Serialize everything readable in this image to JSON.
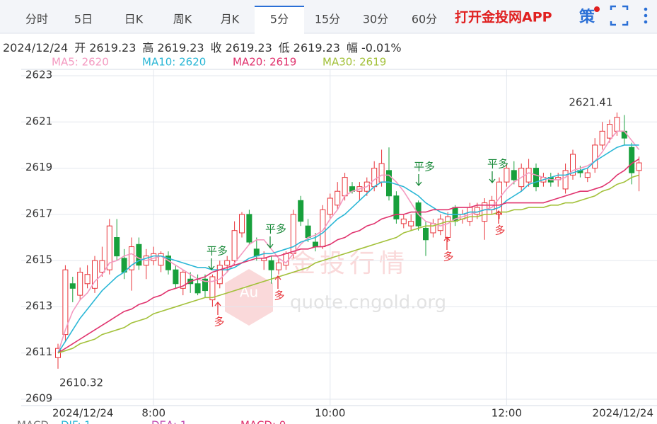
{
  "tabs": [
    "分时",
    "5日",
    "日K",
    "周K",
    "月K",
    "5分",
    "15分",
    "30分",
    "60分"
  ],
  "selected_tab": 5,
  "app_link": "打开金投网APP",
  "strategy_icon": "策",
  "info": {
    "date": "2024/12/24",
    "items": [
      {
        "label": "开",
        "value": "2619.23"
      },
      {
        "label": "高",
        "value": "2619.23"
      },
      {
        "label": "收",
        "value": "2619.23"
      },
      {
        "label": "低",
        "value": "2619.23"
      },
      {
        "label": "幅",
        "value": "-0.01%"
      }
    ]
  },
  "watermark": {
    "brand": "金投行情",
    "url": "quote.cngold.org",
    "logo": "Au"
  },
  "footer": [
    "MACD",
    "DIF: 1",
    "DEA: 1",
    "MACD: 0"
  ],
  "signals": [
    "平多",
    "多",
    "平多",
    "多",
    "平多",
    "多",
    "平多",
    "多"
  ],
  "chart_data": {
    "type": "candlestick",
    "up_color": "#e8343a",
    "down_color": "#18a03c",
    "categories": [
      "2024/12/24",
      null,
      null,
      null,
      null,
      null,
      null,
      null,
      null,
      null,
      null,
      null,
      null,
      "8:00",
      null,
      null,
      null,
      null,
      null,
      null,
      null,
      null,
      null,
      null,
      null,
      null,
      null,
      null,
      null,
      null,
      null,
      null,
      null,
      null,
      null,
      null,
      null,
      "10:00",
      null,
      null,
      null,
      null,
      null,
      null,
      null,
      null,
      null,
      null,
      null,
      null,
      null,
      null,
      null,
      null,
      null,
      null,
      null,
      null,
      null,
      null,
      null,
      "12:00",
      null,
      null,
      null,
      null,
      null,
      null,
      null,
      null,
      null,
      null,
      null,
      null,
      null,
      null,
      null,
      null,
      null,
      "2024/12/24"
    ],
    "open": [
      2610.8,
      2611.8,
      2614.0,
      2613.5,
      2614.0,
      2613.8,
      2614.5,
      2614.6,
      2616.0,
      2615.1,
      2614.6,
      2615.7,
      2614.8,
      2615.0,
      2614.8,
      2615.2,
      2614.6,
      2613.8,
      2614.2,
      2614.0,
      2614.2,
      2613.3,
      2614.0,
      2614.8,
      2615.0,
      2616.2,
      2617.0,
      2615.5,
      2615.0,
      2615.0,
      2614.6,
      2614.8,
      2615.3,
      2617.6,
      2616.5,
      2615.8,
      2615.6,
      2617.0,
      2617.4,
      2617.8,
      2618.2,
      2618.0,
      2618.0,
      2618.2,
      2618.4,
      2618.9,
      2617.8,
      2616.6,
      2616.5,
      2617.5,
      2616.4,
      2616.2,
      2616.3,
      2616.0,
      2617.3,
      2616.8,
      2616.7,
      2617.0,
      2616.7,
      2617.2,
      2617.0,
      2618.4,
      2618.9,
      2618.2,
      2618.4,
      2619.0,
      2618.4,
      2618.6,
      2618.5,
      2618.1,
      2618.7,
      2618.9,
      2618.6,
      2619.0,
      2620.0,
      2620.3,
      2620.6,
      2620.6,
      2619.9,
      2618.9
    ],
    "high": [
      2611.4,
      2614.8,
      2614.3,
      2614.7,
      2614.8,
      2615.2,
      2615.6,
      2616.8,
      2616.8,
      2615.5,
      2616.0,
      2616.0,
      2615.5,
      2615.6,
      2615.4,
      2615.4,
      2614.8,
      2614.6,
      2614.5,
      2614.4,
      2614.4,
      2614.4,
      2615.0,
      2615.2,
      2616.7,
      2617.1,
      2617.2,
      2616.0,
      2615.4,
      2615.2,
      2615.1,
      2615.4,
      2617.2,
      2617.8,
      2616.8,
      2616.2,
      2617.4,
      2617.9,
      2618.4,
      2618.8,
      2618.4,
      2618.4,
      2618.6,
      2619.3,
      2619.8,
      2619.9,
      2618.0,
      2617.0,
      2617.0,
      2617.6,
      2616.7,
      2616.8,
      2617.0,
      2617.1,
      2617.4,
      2617.2,
      2617.5,
      2617.5,
      2617.7,
      2617.8,
      2618.6,
      2619.2,
      2619.3,
      2619.2,
      2619.4,
      2619.2,
      2618.8,
      2618.8,
      2618.8,
      2619.2,
      2619.8,
      2619.1,
      2619.0,
      2620.3,
      2621.0,
      2621.1,
      2621.41,
      2621.3,
      2620.1,
      2619.5
    ],
    "low": [
      2610.32,
      2611.5,
      2613.2,
      2613.3,
      2613.8,
      2613.6,
      2614.3,
      2614.4,
      2615.0,
      2614.2,
      2613.7,
      2614.6,
      2614.2,
      2614.8,
      2614.5,
      2614.4,
      2613.8,
      2613.5,
      2613.6,
      2613.5,
      2613.4,
      2613.0,
      2613.8,
      2614.5,
      2614.8,
      2616.0,
      2615.7,
      2615.0,
      2614.6,
      2614.0,
      2614.4,
      2614.6,
      2615.1,
      2616.5,
      2615.8,
      2615.4,
      2615.5,
      2616.8,
      2617.2,
      2617.6,
      2617.9,
      2617.6,
      2617.8,
      2618.0,
      2618.2,
      2617.6,
      2616.6,
      2616.4,
      2616.3,
      2616.3,
      2615.2,
      2616.0,
      2616.1,
      2615.8,
      2616.5,
      2616.6,
      2616.5,
      2616.8,
      2615.9,
      2617.0,
      2616.8,
      2618.2,
      2618.3,
      2618.0,
      2618.2,
      2618.0,
      2618.2,
      2618.2,
      2618.2,
      2617.9,
      2618.5,
      2618.6,
      2618.4,
      2618.8,
      2619.8,
      2620.1,
      2620.4,
      2620.0,
      2618.3,
      2618.0
    ],
    "close": [
      2611.2,
      2614.6,
      2613.8,
      2614.5,
      2614.4,
      2615.0,
      2615.0,
      2616.5,
      2615.2,
      2614.5,
      2615.6,
      2614.8,
      2615.2,
      2615.3,
      2615.3,
      2614.6,
      2614.0,
      2614.5,
      2614.0,
      2613.6,
      2613.7,
      2614.3,
      2614.8,
      2615.0,
      2616.3,
      2617.0,
      2615.8,
      2615.2,
      2615.1,
      2614.6,
      2614.9,
      2615.3,
      2617.0,
      2616.7,
      2616.0,
      2615.6,
      2617.2,
      2617.7,
      2618.0,
      2618.6,
      2618.0,
      2618.2,
      2618.4,
      2619.0,
      2619.2,
      2617.8,
      2616.8,
      2616.8,
      2616.7,
      2616.5,
      2615.9,
      2616.6,
      2616.8,
      2616.9,
      2616.7,
      2617.0,
      2617.3,
      2617.3,
      2617.5,
      2617.6,
      2618.4,
      2619.0,
      2618.5,
      2619.0,
      2619.0,
      2618.2,
      2618.6,
      2618.4,
      2618.6,
      2618.9,
      2619.6,
      2618.8,
      2618.8,
      2620.0,
      2620.6,
      2620.9,
      2621.2,
      2620.3,
      2618.8,
      2619.23
    ],
    "lines": [
      {
        "name": "MA5: 2620",
        "color": "#f49ac1",
        "values": [
          2611.0,
          2612.0,
          2612.8,
          2613.3,
          2613.6,
          2614.1,
          2614.4,
          2614.9,
          2615.0,
          2615.2,
          2615.3,
          2615.1,
          2615.0,
          2615.1,
          2615.2,
          2615.0,
          2614.8,
          2614.6,
          2614.4,
          2614.2,
          2614.1,
          2614.1,
          2614.2,
          2614.5,
          2614.9,
          2615.3,
          2615.7,
          2615.9,
          2615.9,
          2615.5,
          2615.1,
          2614.9,
          2615.3,
          2615.7,
          2616.0,
          2616.1,
          2616.3,
          2616.8,
          2617.2,
          2617.8,
          2618.0,
          2618.1,
          2618.2,
          2618.5,
          2618.7,
          2618.7,
          2618.4,
          2618.0,
          2617.5,
          2617.0,
          2616.7,
          2616.6,
          2616.5,
          2616.6,
          2616.8,
          2616.9,
          2617.0,
          2617.1,
          2617.2,
          2617.3,
          2617.7,
          2618.1,
          2618.4,
          2618.6,
          2618.8,
          2618.7,
          2618.6,
          2618.5,
          2618.5,
          2618.6,
          2618.9,
          2619.0,
          2619.1,
          2619.3,
          2619.7,
          2620.2,
          2620.6,
          2620.6,
          2620.2,
          2619.8
        ]
      },
      {
        "name": "MA10: 2620",
        "color": "#2bb7d6",
        "values": [
          2611.0,
          2611.5,
          2612.0,
          2612.5,
          2612.9,
          2613.3,
          2613.7,
          2614.0,
          2614.3,
          2614.5,
          2614.8,
          2615.0,
          2615.1,
          2615.2,
          2615.2,
          2615.1,
          2615.0,
          2614.9,
          2614.8,
          2614.7,
          2614.7,
          2614.6,
          2614.6,
          2614.6,
          2614.7,
          2614.9,
          2615.1,
          2615.2,
          2615.3,
          2615.3,
          2615.4,
          2615.5,
          2615.6,
          2615.8,
          2615.9,
          2616.0,
          2616.2,
          2616.5,
          2616.8,
          2617.0,
          2617.3,
          2617.6,
          2617.9,
          2618.2,
          2618.4,
          2618.4,
          2618.3,
          2618.2,
          2618.0,
          2617.8,
          2617.5,
          2617.3,
          2617.1,
          2617.0,
          2617.0,
          2617.0,
          2617.1,
          2617.1,
          2617.2,
          2617.2,
          2617.3,
          2617.6,
          2617.8,
          2618.0,
          2618.3,
          2618.4,
          2618.5,
          2618.6,
          2618.7,
          2618.7,
          2618.8,
          2618.9,
          2619.0,
          2619.3,
          2619.5,
          2619.7,
          2619.9,
          2620.0,
          2620.0,
          2620.0
        ]
      },
      {
        "name": "MA20: 2619",
        "color": "#e0336e",
        "values": [
          2611.0,
          2611.2,
          2611.4,
          2611.6,
          2611.8,
          2612.0,
          2612.2,
          2612.4,
          2612.6,
          2612.8,
          2612.9,
          2613.1,
          2613.2,
          2613.4,
          2613.5,
          2613.7,
          2613.8,
          2613.9,
          2614.1,
          2614.2,
          2614.3,
          2614.5,
          2614.6,
          2614.7,
          2614.8,
          2614.9,
          2615.0,
          2615.1,
          2615.1,
          2615.2,
          2615.2,
          2615.3,
          2615.4,
          2615.5,
          2615.5,
          2615.6,
          2615.6,
          2615.7,
          2615.9,
          2616.0,
          2616.2,
          2616.3,
          2616.5,
          2616.6,
          2616.8,
          2616.9,
          2617.0,
          2617.0,
          2617.1,
          2617.1,
          2617.1,
          2617.2,
          2617.2,
          2617.2,
          2617.3,
          2617.3,
          2617.3,
          2617.4,
          2617.4,
          2617.4,
          2617.4,
          2617.5,
          2617.5,
          2617.5,
          2617.5,
          2617.5,
          2617.5,
          2617.6,
          2617.7,
          2617.8,
          2617.9,
          2618.0,
          2618.0,
          2618.1,
          2618.2,
          2618.4,
          2618.7,
          2618.9,
          2619.2,
          2619.4
        ]
      },
      {
        "name": "MA30: 2619",
        "color": "#a3c13a",
        "values": [
          2611.0,
          2611.1,
          2611.2,
          2611.4,
          2611.5,
          2611.6,
          2611.8,
          2611.9,
          2612.0,
          2612.1,
          2612.3,
          2612.4,
          2612.5,
          2612.7,
          2612.8,
          2612.9,
          2613.0,
          2613.1,
          2613.2,
          2613.3,
          2613.4,
          2613.4,
          2613.5,
          2613.6,
          2613.7,
          2613.8,
          2613.9,
          2614.0,
          2614.1,
          2614.2,
          2614.3,
          2614.4,
          2614.5,
          2614.6,
          2614.7,
          2614.9,
          2615.0,
          2615.1,
          2615.2,
          2615.3,
          2615.4,
          2615.5,
          2615.6,
          2615.7,
          2615.8,
          2615.9,
          2616.0,
          2616.2,
          2616.3,
          2616.4,
          2616.5,
          2616.5,
          2616.6,
          2616.7,
          2616.7,
          2616.8,
          2616.9,
          2616.9,
          2617.0,
          2617.0,
          2617.1,
          2617.1,
          2617.2,
          2617.2,
          2617.3,
          2617.3,
          2617.3,
          2617.4,
          2617.4,
          2617.5,
          2617.5,
          2617.6,
          2617.7,
          2617.8,
          2618.0,
          2618.1,
          2618.3,
          2618.4,
          2618.6,
          2618.7
        ]
      }
    ],
    "ylim": [
      2609,
      2623
    ],
    "yticks": [
      2609,
      2611,
      2613,
      2615,
      2617,
      2619,
      2621,
      2623
    ],
    "grid": true
  }
}
